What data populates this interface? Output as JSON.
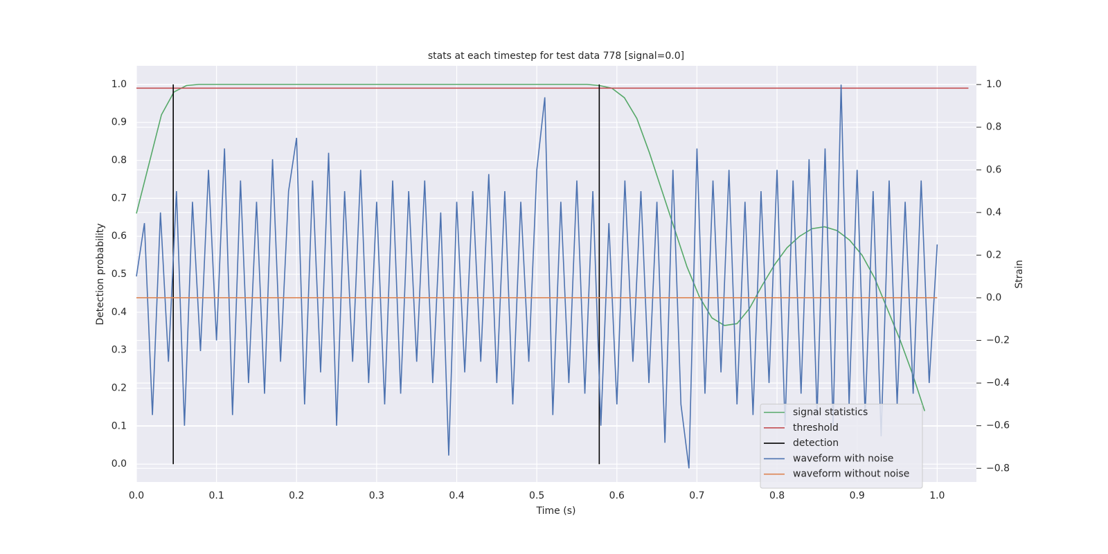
{
  "chart_data": {
    "type": "line",
    "title": "stats at each timestep for test data 778 [signal=0.0]",
    "xlabel": "Time (s)",
    "ylabel": "Detection probability",
    "y2label": "Strain",
    "xlim": [
      0,
      1.049
    ],
    "ylim": [
      -0.047,
      1.049
    ],
    "y2lim": [
      -0.864,
      1.088
    ],
    "xticks": [
      {
        "value": 0,
        "label": "0.0"
      },
      0.1,
      0.2,
      0.3,
      0.4,
      0.5,
      0.6,
      0.7,
      0.8,
      0.9,
      {
        "value": 1,
        "label": "1.0"
      }
    ],
    "yticks": [
      {
        "value": 0,
        "label": "0.0"
      },
      0.1,
      0.2,
      0.3,
      0.4,
      0.5,
      0.6,
      0.7,
      0.8,
      0.9,
      {
        "value": 1,
        "label": "1.0"
      }
    ],
    "y2ticks": [
      {
        "value": -0.8,
        "label": "−0.8"
      },
      {
        "value": -0.6,
        "label": "−0.6"
      },
      {
        "value": -0.4,
        "label": "−0.4"
      },
      {
        "value": -0.2,
        "label": "−0.2"
      },
      {
        "value": 0,
        "label": "0.0"
      },
      0.2,
      0.4,
      0.6,
      0.8,
      {
        "value": 1,
        "label": "1.0"
      }
    ],
    "grid": true,
    "legend": "lower right",
    "series": [
      {
        "name": "signal statistics",
        "color": "#55a868",
        "axis": "y",
        "x": [
          0,
          0.015625,
          0.03125,
          0.046875,
          0.0625,
          0.078125,
          0.5625,
          0.578125,
          0.59375,
          0.609375,
          0.625,
          0.640625,
          0.65625,
          0.671875,
          0.6875,
          0.703125,
          0.71875,
          0.734375,
          0.75,
          0.765625,
          0.78125,
          0.796875,
          0.8125,
          0.828125,
          0.84375,
          0.859375,
          0.875,
          0.890625,
          0.90625,
          0.921875,
          0.9375,
          0.953125,
          0.96875,
          0.984375
        ],
        "values": [
          0.66,
          0.79,
          0.92,
          0.98,
          0.997,
          1.0,
          1.0,
          0.997,
          0.99,
          0.965,
          0.91,
          0.82,
          0.72,
          0.62,
          0.52,
          0.44,
          0.385,
          0.365,
          0.37,
          0.41,
          0.47,
          0.525,
          0.57,
          0.6,
          0.62,
          0.625,
          0.615,
          0.59,
          0.55,
          0.49,
          0.41,
          0.33,
          0.24,
          0.14
        ]
      },
      {
        "name": "threshold",
        "color": "#c44e52",
        "axis": "y",
        "x": [
          0,
          1.039
        ],
        "values": [
          0.99,
          0.99
        ]
      },
      {
        "name": "detection",
        "color": "#000000",
        "axis": "y",
        "x": [
          0.046,
          0.046,
          null,
          0.578,
          0.578
        ],
        "values": [
          0,
          1,
          null,
          0,
          1
        ]
      },
      {
        "name": "waveform with noise",
        "color": "#4c72b0",
        "axis": "y2",
        "x": [
          0,
          0.01,
          0.02,
          0.03,
          0.04,
          0.05,
          0.06,
          0.07,
          0.08,
          0.09,
          0.1,
          0.11,
          0.12,
          0.13,
          0.14,
          0.15,
          0.16,
          0.17,
          0.18,
          0.19,
          0.2,
          0.21,
          0.22,
          0.23,
          0.24,
          0.25,
          0.26,
          0.27,
          0.28,
          0.29,
          0.3,
          0.31,
          0.32,
          0.33,
          0.34,
          0.35,
          0.36,
          0.37,
          0.38,
          0.39,
          0.4,
          0.41,
          0.42,
          0.43,
          0.44,
          0.45,
          0.46,
          0.47,
          0.48,
          0.49,
          0.5,
          0.51,
          0.52,
          0.53,
          0.54,
          0.55,
          0.56,
          0.57,
          0.58,
          0.59,
          0.6,
          0.61,
          0.62,
          0.63,
          0.64,
          0.65,
          0.66,
          0.67,
          0.68,
          0.69,
          0.7,
          0.71,
          0.72,
          0.73,
          0.74,
          0.75,
          0.76,
          0.77,
          0.78,
          0.79,
          0.8,
          0.81,
          0.82,
          0.83,
          0.84,
          0.85,
          0.86,
          0.87,
          0.88,
          0.89,
          0.9,
          0.91,
          0.92,
          0.93,
          0.94,
          0.95,
          0.96,
          0.97,
          0.98,
          0.99,
          1.0
        ],
        "values": [
          0.1,
          0.35,
          -0.55,
          0.4,
          -0.3,
          0.5,
          -0.6,
          0.45,
          -0.25,
          0.6,
          -0.2,
          0.7,
          -0.55,
          0.55,
          -0.4,
          0.45,
          -0.45,
          0.65,
          -0.3,
          0.5,
          0.75,
          -0.5,
          0.55,
          -0.35,
          0.68,
          -0.6,
          0.5,
          -0.3,
          0.6,
          -0.4,
          0.45,
          -0.5,
          0.55,
          -0.45,
          0.5,
          -0.3,
          0.55,
          -0.4,
          0.4,
          -0.74,
          0.45,
          -0.35,
          0.5,
          -0.3,
          0.58,
          -0.4,
          0.5,
          -0.5,
          0.45,
          -0.3,
          0.6,
          0.94,
          -0.55,
          0.45,
          -0.4,
          0.55,
          -0.45,
          0.5,
          -0.6,
          0.35,
          -0.5,
          0.55,
          -0.3,
          0.5,
          -0.4,
          0.45,
          -0.68,
          0.6,
          -0.5,
          -0.8,
          0.7,
          -0.45,
          0.55,
          -0.35,
          0.6,
          -0.5,
          0.45,
          -0.55,
          0.5,
          -0.4,
          0.6,
          -0.6,
          0.55,
          -0.45,
          0.65,
          -0.55,
          0.7,
          -0.6,
          1.0,
          -0.5,
          0.6,
          -0.55,
          0.5,
          -0.65,
          0.55,
          -0.5,
          0.45,
          -0.45,
          0.55,
          -0.4,
          0.25
        ]
      },
      {
        "name": "waveform without noise",
        "color": "#dd8452",
        "axis": "y2",
        "x": [
          0,
          1
        ],
        "values": [
          0,
          0
        ]
      }
    ]
  }
}
